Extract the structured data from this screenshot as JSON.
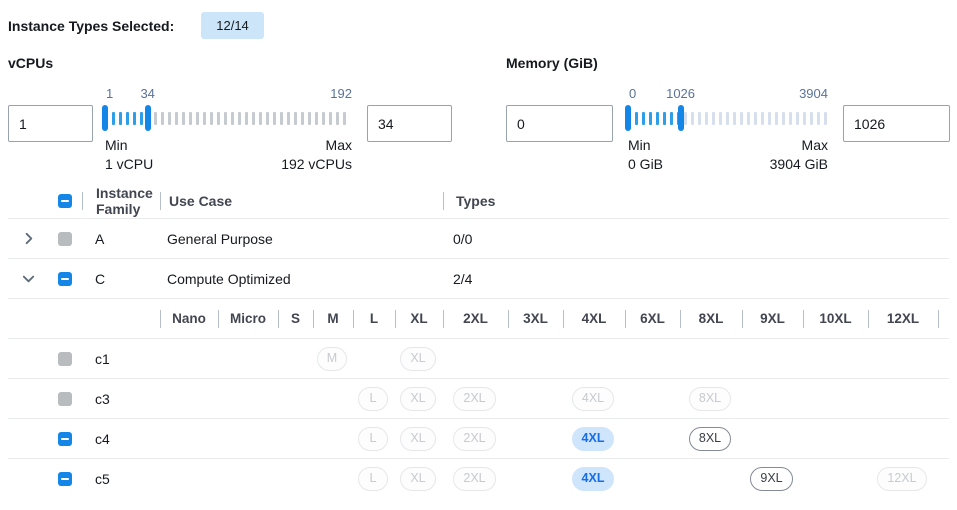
{
  "header": {
    "label": "Instance Types Selected:",
    "badge": "12/14"
  },
  "filters": {
    "vcpus": {
      "label": "vCPUs",
      "inputs": {
        "low": "1",
        "high": "34"
      },
      "scale": {
        "low": "1",
        "high": "34",
        "max": "192"
      },
      "range": {
        "min": 1,
        "max": 192,
        "low": 1,
        "high": 34
      },
      "min_caption": "Min",
      "min_detail": "1 vCPU",
      "max_caption": "Max",
      "max_detail": "192 vCPUs"
    },
    "memory": {
      "label": "Memory (GiB)",
      "inputs": {
        "low": "0",
        "high": "1026"
      },
      "scale": {
        "low": "0",
        "high": "1026",
        "max": "3904"
      },
      "range": {
        "min": 0,
        "max": 3904,
        "low": 0,
        "high": 1026
      },
      "min_caption": "Min",
      "min_detail": "0 GiB",
      "max_caption": "Max",
      "max_detail": "3904 GiB"
    }
  },
  "table": {
    "headers": {
      "family": "Instance Family",
      "use_case": "Use Case",
      "types": "Types"
    },
    "header_checkbox": "indeterminate",
    "families": [
      {
        "name": "A",
        "use_case": "General Purpose",
        "types": "0/0",
        "expanded": false,
        "checkbox": "disabled"
      },
      {
        "name": "C",
        "use_case": "Compute Optimized",
        "types": "2/4",
        "expanded": true,
        "checkbox": "indeterminate"
      }
    ],
    "sizes": [
      "Nano",
      "Micro",
      "S",
      "M",
      "L",
      "XL",
      "2XL",
      "3XL",
      "4XL",
      "6XL",
      "8XL",
      "9XL",
      "10XL",
      "12XL"
    ],
    "instances": [
      {
        "name": "c1",
        "checkbox": "disabled",
        "pills": {
          "M": "disabled",
          "XL": "disabled"
        }
      },
      {
        "name": "c3",
        "checkbox": "disabled",
        "pills": {
          "L": "disabled",
          "XL": "disabled",
          "2XL": "disabled",
          "4XL": "disabled",
          "8XL": "disabled"
        }
      },
      {
        "name": "c4",
        "checkbox": "indeterminate",
        "pills": {
          "L": "disabled",
          "XL": "disabled",
          "2XL": "disabled",
          "4XL": "selected",
          "8XL": "available"
        }
      },
      {
        "name": "c5",
        "checkbox": "indeterminate",
        "pills": {
          "L": "disabled",
          "XL": "disabled",
          "2XL": "disabled",
          "4XL": "selected",
          "9XL": "available",
          "12XL": "disabled"
        }
      }
    ]
  },
  "colors": {
    "accent": "#1486e8",
    "badge_bg": "#cde5f8",
    "pill_selected_bg": "#cfe5fb",
    "pill_selected_text": "#176de6",
    "tick_in": "#2d9fe8",
    "tick_out_vcpus": "#c6cad1",
    "tick_out_memory": "#d7dfee"
  }
}
